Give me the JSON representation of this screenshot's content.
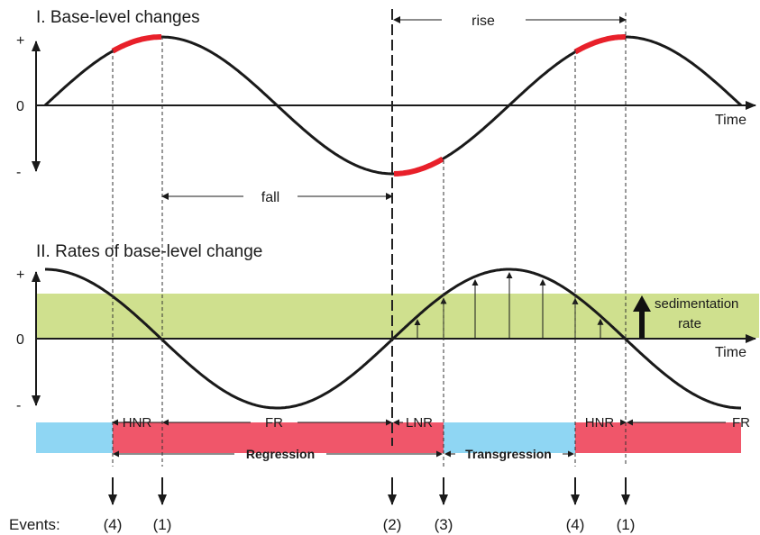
{
  "panel1": {
    "title": "I. Base-level changes",
    "plus": "+",
    "zero": "0",
    "minus": "-",
    "time": "Time",
    "rise": "rise",
    "fall": "fall"
  },
  "panel2": {
    "title": "II. Rates of base-level change",
    "plus": "+",
    "zero": "0",
    "minus": "-",
    "time": "Time",
    "sed_line1": "sedimentation",
    "sed_line2": "rate"
  },
  "bar": {
    "hnr1": "HNR",
    "fr1": "FR",
    "lnr": "LNR",
    "hnr2": "HNR",
    "fr2": "FR",
    "regression": "Regression",
    "transgression": "Transgression"
  },
  "events": {
    "label": "Events:",
    "items": [
      "(4)",
      "(1)",
      "(2)",
      "(3)",
      "(4)",
      "(1)"
    ]
  },
  "colors": {
    "highlight": "#e8202a",
    "sediment_band": "#cfe08e",
    "regression": "#f0566a",
    "transgression": "#8fd6f3"
  }
}
